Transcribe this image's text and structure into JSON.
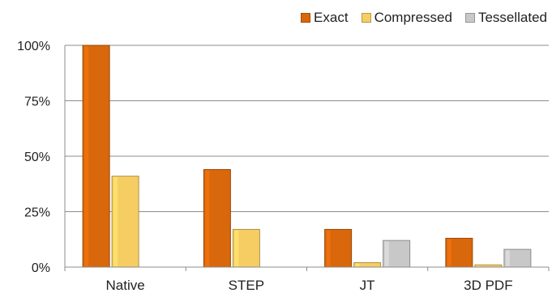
{
  "chart_data": {
    "type": "bar",
    "categories": [
      "Native",
      "STEP",
      "JT",
      "3D PDF"
    ],
    "series": [
      {
        "name": "Exact",
        "values": [
          100,
          44,
          17,
          13
        ],
        "color": "#d9670b"
      },
      {
        "name": "Compressed",
        "values": [
          41,
          17,
          2,
          1
        ],
        "color": "#f6cd63"
      },
      {
        "name": "Tessellated",
        "values": [
          0,
          0,
          12,
          8
        ],
        "color": "#c8c8c8"
      }
    ],
    "ylim": [
      0,
      100
    ],
    "yticks": [
      0,
      25,
      50,
      75,
      100
    ],
    "ytick_labels": [
      "0%",
      "25%",
      "50%",
      "75%",
      "100%"
    ],
    "title": "",
    "xlabel": "",
    "ylabel": "",
    "grid": true,
    "legend_position": "top-right"
  }
}
